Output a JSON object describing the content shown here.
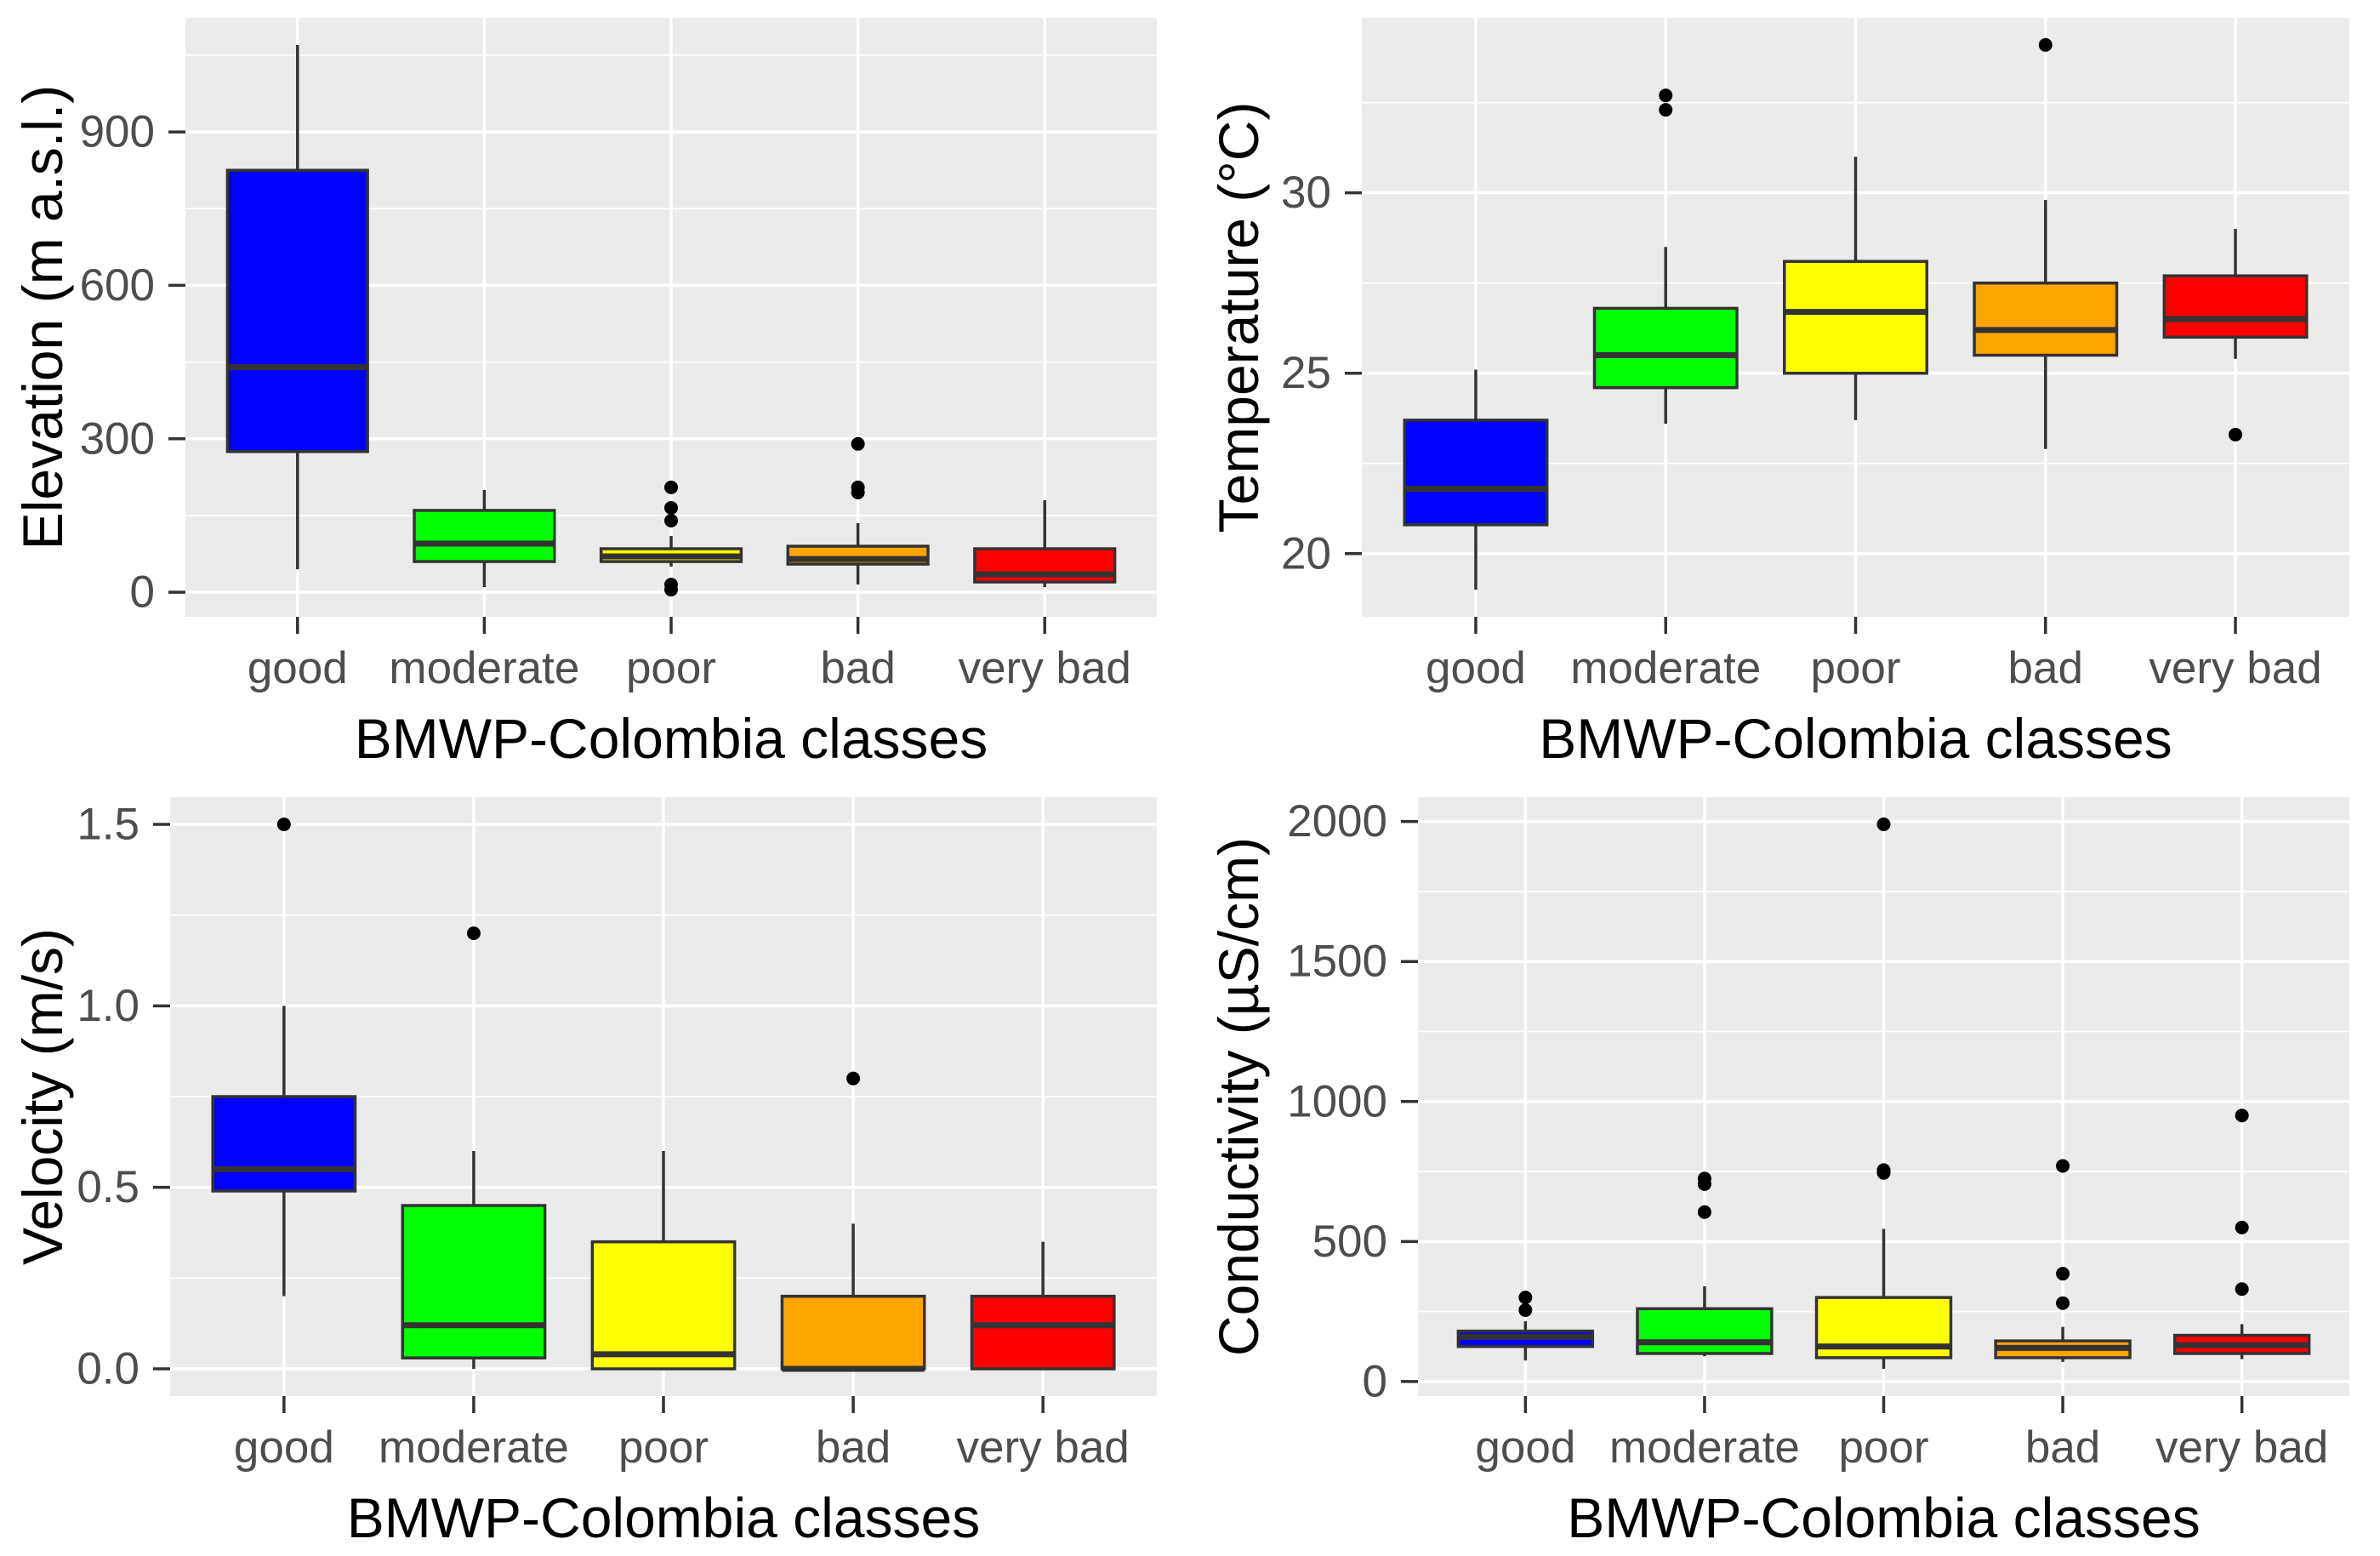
{
  "chart_data": [
    {
      "type": "box",
      "xlabel": "BMWP-Colombia classes",
      "ylabel": "Elevation (m a.s.l.)",
      "categories": [
        "good",
        "moderate",
        "poor",
        "bad",
        "very bad"
      ],
      "colors": [
        "#0000FF",
        "#00FF00",
        "#FFFF00",
        "#FFA500",
        "#FF0000"
      ],
      "ylim": [
        -48,
        1123
      ],
      "yticks": [
        0,
        300,
        600,
        900
      ],
      "ytick_labels": [
        "0",
        "300",
        "600",
        "900"
      ],
      "grid": true,
      "boxes": [
        {
          "min": 45,
          "q1": 275,
          "median": 440,
          "q3": 825,
          "max": 1070,
          "outliers": []
        },
        {
          "min": 10,
          "q1": 60,
          "median": 95,
          "q3": 160,
          "max": 200,
          "outliers": []
        },
        {
          "min": 50,
          "q1": 60,
          "median": 70,
          "q3": 85,
          "max": 110,
          "outliers": [
            5,
            15,
            140,
            165,
            205
          ]
        },
        {
          "min": 15,
          "q1": 55,
          "median": 65,
          "q3": 90,
          "max": 135,
          "outliers": [
            195,
            205,
            290
          ]
        },
        {
          "min": 10,
          "q1": 20,
          "median": 35,
          "q3": 85,
          "max": 180,
          "outliers": []
        }
      ]
    },
    {
      "type": "box",
      "xlabel": "BMWP-Colombia classes",
      "ylabel": "Temperature (°C)",
      "categories": [
        "good",
        "moderate",
        "poor",
        "bad",
        "very bad"
      ],
      "colors": [
        "#0000FF",
        "#00FF00",
        "#FFFF00",
        "#FFA500",
        "#FF0000"
      ],
      "ylim": [
        18.25,
        34.85
      ],
      "yticks": [
        20,
        25,
        30
      ],
      "ytick_labels": [
        "20",
        "25",
        "30"
      ],
      "grid": true,
      "boxes": [
        {
          "min": 19.0,
          "q1": 20.8,
          "median": 21.8,
          "q3": 23.7,
          "max": 25.1,
          "outliers": []
        },
        {
          "min": 23.6,
          "q1": 24.6,
          "median": 25.5,
          "q3": 26.8,
          "max": 28.5,
          "outliers": [
            32.3,
            32.7
          ]
        },
        {
          "min": 23.7,
          "q1": 25.0,
          "median": 26.7,
          "q3": 28.1,
          "max": 31.0,
          "outliers": []
        },
        {
          "min": 22.9,
          "q1": 25.5,
          "median": 26.2,
          "q3": 27.5,
          "max": 29.8,
          "outliers": [
            34.1
          ]
        },
        {
          "min": 25.4,
          "q1": 26.0,
          "median": 26.5,
          "q3": 27.7,
          "max": 29.0,
          "outliers": [
            23.3
          ]
        }
      ]
    },
    {
      "type": "box",
      "xlabel": "BMWP-Colombia classes",
      "ylabel": "Velocity (m/s)",
      "categories": [
        "good",
        "moderate",
        "poor",
        "bad",
        "very bad"
      ],
      "colors": [
        "#0000FF",
        "#00FF00",
        "#FFFF00",
        "#FFA500",
        "#FF0000"
      ],
      "ylim": [
        -0.075,
        1.575
      ],
      "yticks": [
        0,
        0.5,
        1.0,
        1.5
      ],
      "ytick_labels": [
        "0.0",
        "0.5",
        "1.0",
        "1.5"
      ],
      "grid": true,
      "boxes": [
        {
          "min": 0.2,
          "q1": 0.49,
          "median": 0.55,
          "q3": 0.75,
          "max": 1.0,
          "outliers": [
            1.5
          ]
        },
        {
          "min": 0.0,
          "q1": 0.03,
          "median": 0.12,
          "q3": 0.45,
          "max": 0.6,
          "outliers": [
            1.2
          ]
        },
        {
          "min": 0.0,
          "q1": 0.0,
          "median": 0.04,
          "q3": 0.35,
          "max": 0.6,
          "outliers": []
        },
        {
          "min": 0.0,
          "q1": 0.0,
          "median": 0.0,
          "q3": 0.2,
          "max": 0.4,
          "outliers": [
            0.8
          ]
        },
        {
          "min": 0.0,
          "q1": 0.0,
          "median": 0.12,
          "q3": 0.2,
          "max": 0.35,
          "outliers": []
        }
      ]
    },
    {
      "type": "box",
      "xlabel": "BMWP-Colombia classes",
      "ylabel": "Conductivity (µS/cm)",
      "categories": [
        "good",
        "moderate",
        "poor",
        "bad",
        "very bad"
      ],
      "colors": [
        "#0000FF",
        "#00FF00",
        "#FFFF00",
        "#FFA500",
        "#FF0000"
      ],
      "ylim": [
        -52,
        2087
      ],
      "yticks": [
        0,
        500,
        1000,
        1500,
        2000
      ],
      "ytick_labels": [
        "0",
        "500",
        "1000",
        "1500",
        "2000"
      ],
      "grid": true,
      "boxes": [
        {
          "min": 75,
          "q1": 125,
          "median": 160,
          "q3": 180,
          "max": 215,
          "outliers": [
            255,
            300
          ]
        },
        {
          "min": 90,
          "q1": 100,
          "median": 140,
          "q3": 260,
          "max": 340,
          "outliers": [
            605,
            705,
            725
          ]
        },
        {
          "min": 45,
          "q1": 85,
          "median": 125,
          "q3": 300,
          "max": 545,
          "outliers": [
            745,
            755,
            1990
          ]
        },
        {
          "min": 70,
          "q1": 85,
          "median": 120,
          "q3": 145,
          "max": 195,
          "outliers": [
            280,
            385,
            770
          ]
        },
        {
          "min": 80,
          "q1": 100,
          "median": 130,
          "q3": 165,
          "max": 205,
          "outliers": [
            330,
            550,
            950
          ]
        }
      ]
    }
  ]
}
